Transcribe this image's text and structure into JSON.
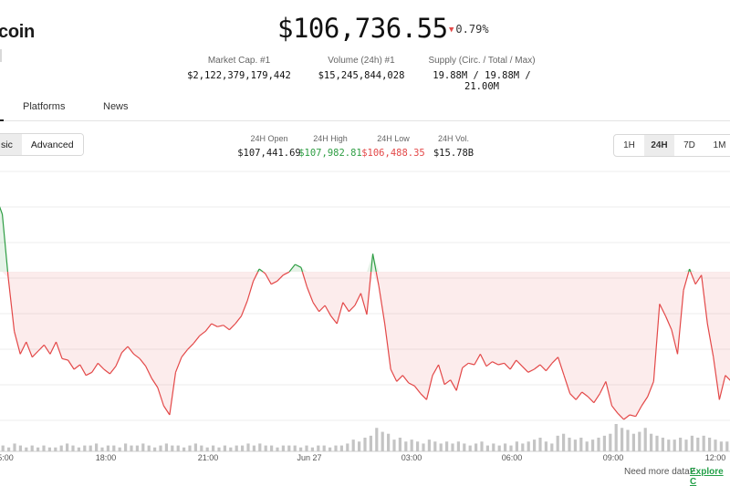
{
  "coin": {
    "name_partial": "coin"
  },
  "price": {
    "value": "$106,736.55",
    "change": "0.79%",
    "change_direction": "down",
    "down_color": "#e34848",
    "up_color": "#2f9e44"
  },
  "stats": [
    {
      "label": "Market Cap. #1",
      "value": "$2,122,379,179,442"
    },
    {
      "label": "Volume (24h) #1",
      "value": "$15,245,844,028"
    },
    {
      "label": "Supply (Circ. / Total / Max)",
      "value": "19.88M / 19.88M / 21.00M"
    }
  ],
  "tabs": [
    {
      "label": "Platforms"
    },
    {
      "label": "News"
    }
  ],
  "view_toggle": {
    "basic": "sic",
    "advanced": "Advanced",
    "selected": "basic"
  },
  "day_stats": [
    {
      "label": "24H Open",
      "value": "$107,441.69",
      "color": "#1a1a1a"
    },
    {
      "label": "24H High",
      "value": "$107,982.81",
      "color": "#2f9e44"
    },
    {
      "label": "24H Low",
      "value": "$106,488.35",
      "color": "#e34848"
    },
    {
      "label": "24H Vol.",
      "value": "$15.78B",
      "color": "#1a1a1a"
    }
  ],
  "range_buttons": [
    "1H",
    "24H",
    "7D",
    "1M"
  ],
  "range_selected": "24H",
  "chart_data": {
    "type": "line",
    "x_labels": [
      "5:00",
      "18:00",
      "21:00",
      "Jun 27",
      "03:00",
      "06:00",
      "09:00",
      "12:00"
    ],
    "grid": true,
    "reference_value": 107441.69,
    "ylim": [
      106440,
      108120
    ],
    "line_colors": {
      "above": "#2f9e44",
      "below": "#e34848"
    },
    "price_values": [
      107930,
      107820,
      107400,
      107050,
      106900,
      106980,
      106880,
      106920,
      106960,
      106900,
      106980,
      106870,
      106860,
      106800,
      106830,
      106760,
      106780,
      106840,
      106800,
      106770,
      106820,
      106910,
      106950,
      106900,
      106870,
      106820,
      106740,
      106680,
      106560,
      106500,
      106780,
      106880,
      106930,
      106970,
      107020,
      107050,
      107100,
      107080,
      107090,
      107060,
      107100,
      107150,
      107250,
      107380,
      107460,
      107430,
      107360,
      107380,
      107420,
      107440,
      107490,
      107470,
      107340,
      107240,
      107180,
      107220,
      107150,
      107100,
      107240,
      107180,
      107220,
      107300,
      107160,
      107560,
      107350,
      107100,
      106800,
      106720,
      106760,
      106710,
      106690,
      106640,
      106600,
      106760,
      106830,
      106700,
      106730,
      106660,
      106810,
      106840,
      106830,
      106900,
      106820,
      106850,
      106830,
      106840,
      106800,
      106860,
      106820,
      106780,
      106800,
      106830,
      106790,
      106840,
      106880,
      106760,
      106640,
      106600,
      106650,
      106620,
      106580,
      106640,
      106720,
      106560,
      106510,
      106470,
      106500,
      106490,
      106560,
      106620,
      106720,
      107230,
      107150,
      107060,
      106900,
      107320,
      107460,
      107360,
      107420,
      107100,
      106880,
      106600,
      106760,
      106720,
      106660
    ],
    "volume_values": [
      3,
      2,
      4,
      3,
      2,
      3,
      2,
      3,
      2,
      2,
      3,
      4,
      3,
      2,
      3,
      3,
      4,
      2,
      3,
      3,
      2,
      4,
      3,
      3,
      4,
      3,
      2,
      3,
      4,
      3,
      3,
      2,
      3,
      4,
      3,
      2,
      3,
      2,
      3,
      2,
      3,
      3,
      4,
      3,
      4,
      3,
      3,
      2,
      3,
      3,
      3,
      2,
      3,
      2,
      3,
      3,
      2,
      3,
      3,
      4,
      6,
      5,
      7,
      8,
      12,
      10,
      9,
      6,
      7,
      5,
      6,
      5,
      4,
      6,
      5,
      4,
      5,
      4,
      5,
      4,
      3,
      4,
      5,
      3,
      4,
      3,
      4,
      3,
      5,
      4,
      5,
      6,
      7,
      5,
      4,
      8,
      9,
      7,
      6,
      7,
      5,
      6,
      7,
      8,
      9,
      14,
      12,
      11,
      9,
      10,
      12,
      9,
      8,
      7,
      6,
      6,
      7,
      6,
      8,
      7,
      8,
      7,
      6,
      5,
      5
    ]
  },
  "footer": {
    "text": "Need more data?",
    "link": "Explore C"
  }
}
